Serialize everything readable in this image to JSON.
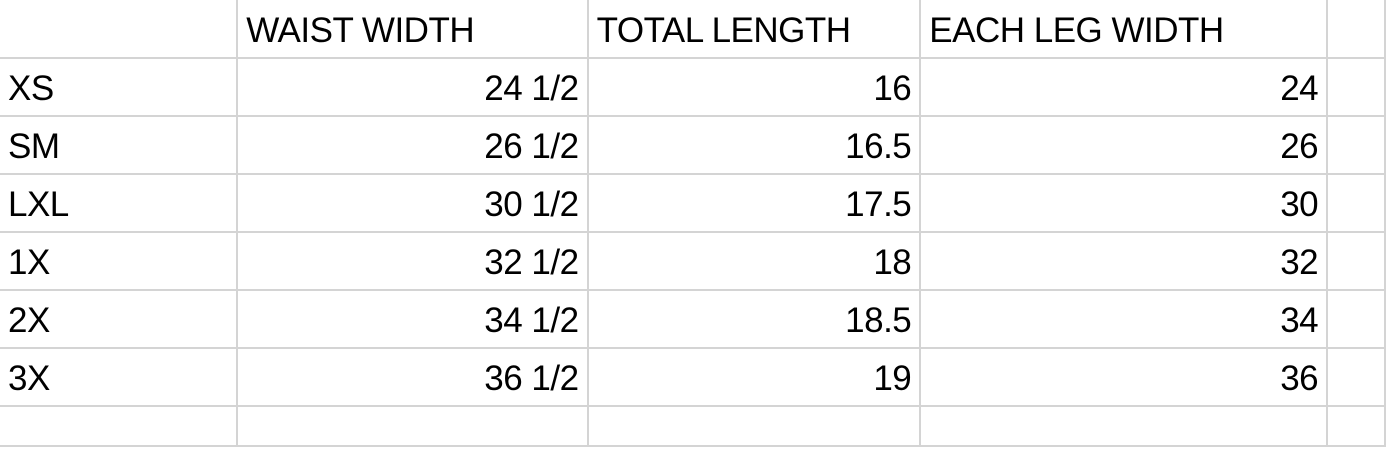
{
  "headers": [
    "",
    "WAIST WIDTH",
    "TOTAL LENGTH",
    "EACH LEG WIDTH"
  ],
  "rows": [
    {
      "size": "XS",
      "waist": "24 1/2",
      "length": "16",
      "leg": "24"
    },
    {
      "size": "SM",
      "waist": "26 1/2",
      "length": "16.5",
      "leg": "26"
    },
    {
      "size": "LXL",
      "waist": "30 1/2",
      "length": "17.5",
      "leg": "30"
    },
    {
      "size": "1X",
      "waist": "32 1/2",
      "length": "18",
      "leg": "32"
    },
    {
      "size": "2X",
      "waist": "34 1/2",
      "length": "18.5",
      "leg": "34"
    },
    {
      "size": "3X",
      "waist": "36 1/2",
      "length": "19",
      "leg": "36"
    }
  ]
}
